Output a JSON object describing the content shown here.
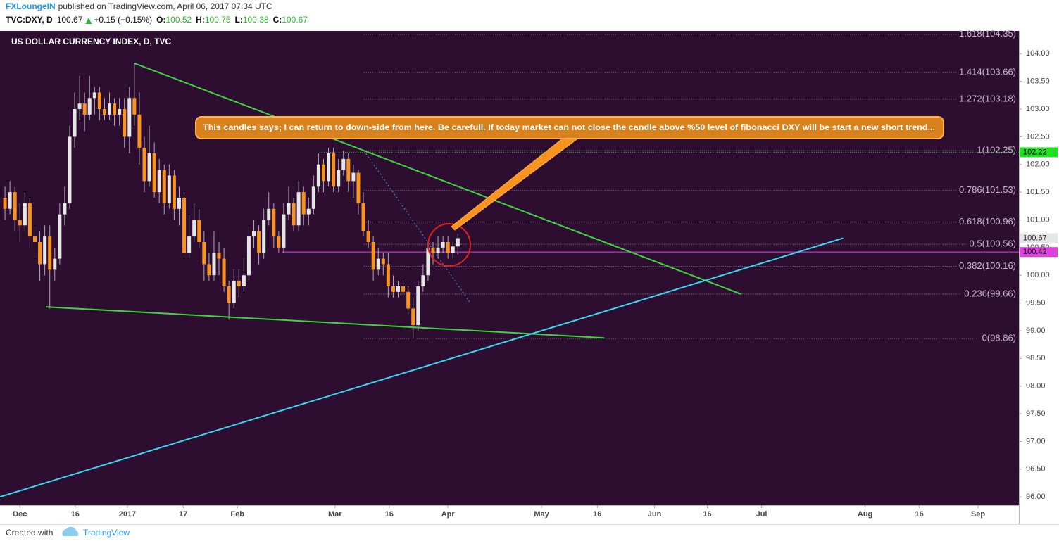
{
  "header": {
    "publisher": "FXLoungeIN",
    "published": "published on TradingView.com, April 06, 2017 07:34 UTC",
    "symbol": "TVC:DXY, D",
    "last": "100.67",
    "change": "+0.15 (+0.15%)",
    "ohlc": [
      [
        "O:",
        "100.52"
      ],
      [
        "H:",
        "100.75"
      ],
      [
        "L:",
        "100.38"
      ],
      [
        "C:",
        "100.67"
      ]
    ]
  },
  "footer": {
    "created": "Created with",
    "brand": "TradingView"
  },
  "chart_data": {
    "type": "candlestick",
    "title": "US DOLLAR CURRENCY INDEX, D, TVC",
    "annotation": "This candles says; I can return to down-side from here. Be carefull. If today market can not close the candle above %50 level of fibonacci DXY will be start a new short trend...",
    "background": "#2d0e31",
    "up_color": "#e6e6e6",
    "down_color": "#f7931e",
    "wick_color": "#b0a8b4",
    "xlim": [
      -4,
      200.7
    ],
    "ylim": [
      95.85,
      104.41
    ],
    "xticks": [
      {
        "value": 0,
        "label": "Dec"
      },
      {
        "value": 11.1,
        "label": "16"
      },
      {
        "value": 21.6,
        "label": "2017"
      },
      {
        "value": 32.8,
        "label": "17"
      },
      {
        "value": 43.7,
        "label": "Feb"
      },
      {
        "value": 63.3,
        "label": "Mar"
      },
      {
        "value": 74.2,
        "label": "16"
      },
      {
        "value": 86,
        "label": "Apr"
      },
      {
        "value": 104.8,
        "label": "May"
      },
      {
        "value": 116,
        "label": "16"
      },
      {
        "value": 127.5,
        "label": "Jun"
      },
      {
        "value": 138.1,
        "label": "16"
      },
      {
        "value": 149,
        "label": "Jul"
      },
      {
        "value": 169.8,
        "label": "Aug"
      },
      {
        "value": 180.7,
        "label": "16"
      },
      {
        "value": 192.5,
        "label": "Sep"
      }
    ],
    "yticks": [
      {
        "value": 96,
        "label": "96.00"
      },
      {
        "value": 96.5,
        "label": "96.50"
      },
      {
        "value": 97,
        "label": "97.00"
      },
      {
        "value": 97.5,
        "label": "97.50"
      },
      {
        "value": 98,
        "label": "98.00"
      },
      {
        "value": 98.5,
        "label": "98.50"
      },
      {
        "value": 99,
        "label": "99.00"
      },
      {
        "value": 99.5,
        "label": "99.50"
      },
      {
        "value": 100,
        "label": "100.00"
      },
      {
        "value": 100.5,
        "label": "100.50"
      },
      {
        "value": 101,
        "label": "101.00"
      },
      {
        "value": 101.5,
        "label": "101.50"
      },
      {
        "value": 102,
        "label": "102.00"
      },
      {
        "value": 102.5,
        "label": "102.50"
      },
      {
        "value": 103,
        "label": "103.00"
      },
      {
        "value": 103.5,
        "label": "103.50"
      },
      {
        "value": 104,
        "label": "104.00"
      }
    ],
    "x": [
      -3,
      -2,
      -1,
      0,
      1,
      2,
      3,
      4,
      5,
      6,
      7,
      8,
      9,
      10,
      11,
      12,
      13,
      14,
      15,
      16,
      17,
      18,
      19,
      20,
      21,
      22,
      23,
      24,
      25,
      26,
      27,
      28,
      29,
      30,
      31,
      32,
      33,
      34,
      35,
      36,
      37,
      38,
      39,
      40,
      41,
      42,
      43,
      44,
      45,
      46,
      47,
      48,
      49,
      50,
      51,
      52,
      53,
      54,
      55,
      56,
      57,
      58,
      59,
      60,
      61,
      62,
      63,
      64,
      65,
      66,
      67,
      68,
      69,
      70,
      71,
      72,
      73,
      74,
      75,
      76,
      77,
      78,
      79,
      80,
      81,
      82,
      83,
      84,
      85,
      86,
      87,
      88
    ],
    "candles": [
      [
        101.4,
        101.6,
        101.0,
        101.2
      ],
      [
        101.2,
        101.7,
        101.1,
        101.5
      ],
      [
        101.5,
        101.6,
        100.8,
        101.0
      ],
      [
        101.0,
        101.3,
        100.6,
        100.9
      ],
      [
        100.9,
        101.5,
        100.8,
        101.3
      ],
      [
        101.3,
        101.4,
        100.5,
        100.7
      ],
      [
        100.7,
        100.9,
        100.3,
        100.6
      ],
      [
        100.6,
        100.8,
        99.9,
        100.2
      ],
      [
        100.2,
        100.9,
        100.0,
        100.7
      ],
      [
        100.7,
        100.9,
        99.4,
        100.1
      ],
      [
        100.1,
        100.5,
        99.9,
        100.3
      ],
      [
        100.3,
        101.3,
        100.2,
        101.1
      ],
      [
        101.1,
        101.6,
        100.9,
        101.3
      ],
      [
        101.3,
        102.7,
        101.2,
        102.5
      ],
      [
        102.5,
        103.3,
        102.3,
        103.0
      ],
      [
        103.0,
        103.6,
        102.8,
        103.1
      ],
      [
        103.1,
        103.3,
        102.6,
        102.9
      ],
      [
        102.9,
        103.6,
        102.8,
        103.2
      ],
      [
        103.2,
        103.4,
        102.9,
        103.3
      ],
      [
        103.3,
        103.4,
        102.8,
        103.0
      ],
      [
        103.0,
        103.2,
        102.8,
        102.9
      ],
      [
        102.9,
        103.3,
        102.8,
        103.1
      ],
      [
        103.1,
        103.2,
        102.7,
        102.9
      ],
      [
        102.9,
        103.2,
        102.7,
        103.0
      ],
      [
        103.0,
        103.2,
        102.3,
        102.5
      ],
      [
        102.5,
        103.4,
        102.2,
        103.2
      ],
      [
        103.2,
        103.82,
        102.7,
        102.9
      ],
      [
        102.9,
        103.3,
        102.0,
        102.3
      ],
      [
        102.3,
        102.5,
        101.5,
        101.7
      ],
      [
        101.7,
        102.7,
        101.6,
        102.2
      ],
      [
        102.2,
        102.4,
        101.4,
        101.5
      ],
      [
        101.5,
        102.1,
        101.3,
        101.9
      ],
      [
        101.9,
        102.0,
        101.1,
        101.3
      ],
      [
        101.3,
        102.0,
        101.2,
        101.8
      ],
      [
        101.8,
        101.9,
        101.0,
        101.2
      ],
      [
        101.2,
        101.6,
        100.9,
        101.4
      ],
      [
        101.4,
        101.5,
        100.3,
        100.4
      ],
      [
        100.4,
        101.1,
        100.3,
        100.7
      ],
      [
        100.7,
        101.3,
        100.6,
        101.0
      ],
      [
        101.0,
        101.2,
        100.5,
        100.6
      ],
      [
        100.6,
        100.8,
        99.9,
        100.2
      ],
      [
        100.2,
        100.4,
        99.9,
        100.0
      ],
      [
        100.0,
        100.8,
        99.9,
        100.4
      ],
      [
        100.4,
        100.6,
        100.0,
        100.3
      ],
      [
        100.3,
        100.5,
        99.7,
        99.8
      ],
      [
        99.8,
        99.9,
        99.2,
        99.5
      ],
      [
        99.5,
        100.1,
        99.4,
        99.9
      ],
      [
        99.9,
        100.1,
        99.6,
        99.8
      ],
      [
        99.8,
        100.3,
        99.7,
        100.0
      ],
      [
        100.0,
        100.9,
        99.9,
        100.7
      ],
      [
        100.7,
        101.0,
        100.5,
        100.8
      ],
      [
        100.8,
        100.9,
        100.2,
        100.4
      ],
      [
        100.4,
        101.2,
        100.3,
        101.0
      ],
      [
        101.0,
        101.5,
        100.9,
        101.2
      ],
      [
        101.2,
        101.3,
        100.5,
        100.7
      ],
      [
        100.7,
        100.8,
        100.4,
        100.5
      ],
      [
        100.5,
        101.3,
        100.4,
        101.1
      ],
      [
        101.1,
        101.6,
        101.0,
        101.3
      ],
      [
        101.3,
        101.4,
        100.8,
        100.9
      ],
      [
        100.9,
        101.7,
        100.8,
        101.5
      ],
      [
        101.5,
        101.6,
        100.9,
        101.1
      ],
      [
        101.1,
        101.4,
        100.9,
        101.2
      ],
      [
        101.2,
        101.8,
        101.1,
        101.6
      ],
      [
        101.6,
        102.2,
        101.5,
        102.0
      ],
      [
        102.0,
        102.1,
        101.5,
        101.7
      ],
      [
        101.7,
        102.3,
        101.6,
        102.2
      ],
      [
        102.2,
        102.3,
        101.5,
        101.6
      ],
      [
        101.6,
        102.1,
        101.5,
        101.9
      ],
      [
        101.9,
        102.25,
        101.8,
        102.1
      ],
      [
        102.1,
        102.2,
        101.5,
        101.7
      ],
      [
        101.7,
        102.0,
        101.4,
        101.85
      ],
      [
        101.85,
        101.9,
        101.1,
        101.3
      ],
      [
        101.3,
        101.5,
        100.7,
        100.8
      ],
      [
        100.8,
        101.0,
        100.5,
        100.6
      ],
      [
        100.6,
        100.7,
        99.9,
        100.1
      ],
      [
        100.1,
        100.5,
        100.0,
        100.3
      ],
      [
        100.3,
        100.4,
        100.0,
        100.2
      ],
      [
        100.2,
        100.4,
        99.6,
        99.8
      ],
      [
        99.8,
        100.0,
        99.6,
        99.7
      ],
      [
        99.7,
        99.9,
        99.6,
        99.8
      ],
      [
        99.8,
        99.9,
        99.6,
        99.7
      ],
      [
        99.7,
        99.8,
        99.3,
        99.4
      ],
      [
        99.4,
        99.6,
        98.86,
        99.1
      ],
      [
        99.1,
        99.9,
        99.0,
        99.8
      ],
      [
        99.8,
        100.2,
        99.7,
        100.0
      ],
      [
        100.0,
        100.6,
        99.9,
        100.5
      ],
      [
        100.5,
        100.6,
        100.2,
        100.4
      ],
      [
        100.4,
        100.7,
        100.3,
        100.5
      ],
      [
        100.5,
        100.7,
        100.4,
        100.6
      ],
      [
        100.6,
        100.7,
        100.3,
        100.4
      ],
      [
        100.4,
        100.6,
        100.3,
        100.52
      ],
      [
        100.52,
        100.75,
        100.38,
        100.67
      ]
    ],
    "fibonacci": {
      "color": "#9a8a9e",
      "label_color": "#c9b8cc",
      "x_from": 69.1,
      "levels": [
        {
          "value": 104.35,
          "label": "1.618(104.35)"
        },
        {
          "value": 103.66,
          "label": "1.414(103.66)"
        },
        {
          "value": 103.18,
          "label": "1.272(103.18)"
        },
        {
          "value": 102.25,
          "label": "1(102.25)"
        },
        {
          "value": 101.53,
          "label": "0.786(101.53)"
        },
        {
          "value": 100.96,
          "label": "0.618(100.96)"
        },
        {
          "value": 100.56,
          "label": "0.5(100.56)"
        },
        {
          "value": 100.16,
          "label": "0.382(100.16)"
        },
        {
          "value": 99.66,
          "label": "0.236(99.66)"
        },
        {
          "value": 98.86,
          "label": "0(98.86)"
        }
      ]
    },
    "hlines": [
      {
        "value": 102.22,
        "color": "#22e022",
        "from": 60.2,
        "dotted": true
      },
      {
        "value": 100.42,
        "color": "#e040e0",
        "from": 52.6,
        "dotted": false
      }
    ],
    "last_badge_color": "#e6e6e6",
    "trendlines": [
      {
        "color": "#3ed43e",
        "dotted": false,
        "points": [
          [
            22.9,
            103.83
          ],
          [
            144.9,
            99.66
          ]
        ]
      },
      {
        "color": "#3ed43e",
        "dotted": false,
        "points": [
          [
            5.2,
            99.43
          ],
          [
            117.4,
            98.87
          ]
        ]
      },
      {
        "color": "#38d8f0",
        "dotted": false,
        "points": [
          [
            -4,
            96.0
          ],
          [
            165.4,
            100.67
          ]
        ]
      },
      {
        "color": "#3aa0d8",
        "dotted": true,
        "points": [
          [
            69.1,
            102.25
          ],
          [
            90.5,
            99.5
          ]
        ]
      }
    ]
  }
}
